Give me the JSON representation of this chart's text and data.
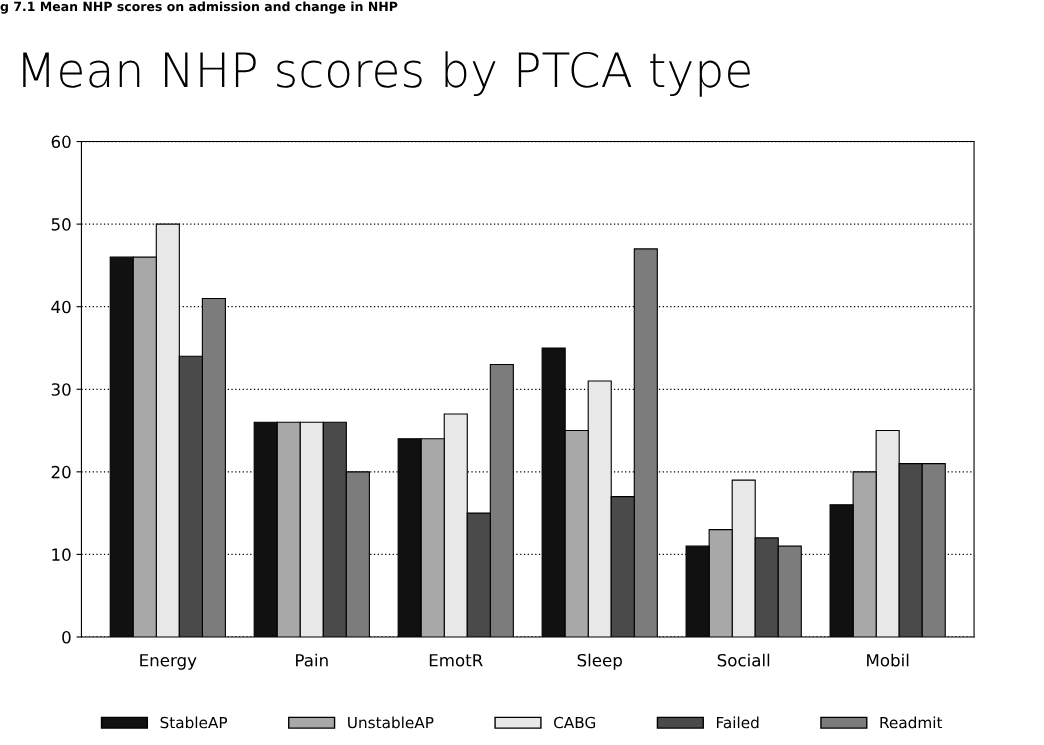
{
  "chart_data": {
    "type": "bar",
    "title": "Mean NHP scores by PTCA type",
    "annotations": [
      "g 7.1 Mean NHP scores on admission and change in NHP"
    ],
    "categories": [
      "Energy",
      "Pain",
      "EmotR",
      "Sleep",
      "Sociall",
      "Mobil"
    ],
    "series": [
      {
        "name": "StableAP",
        "color": "#111111",
        "values": [
          46,
          26,
          24,
          35,
          11,
          16
        ]
      },
      {
        "name": "UnstableAP",
        "color": "#a8a8a8",
        "values": [
          46,
          26,
          24,
          25,
          13,
          20
        ]
      },
      {
        "name": "CABG",
        "color": "#e8e8e8",
        "values": [
          50,
          26,
          27,
          31,
          19,
          25
        ]
      },
      {
        "name": "Failed",
        "color": "#4a4a4a",
        "values": [
          34,
          26,
          15,
          17,
          12,
          21
        ]
      },
      {
        "name": "Readmit",
        "color": "#7c7c7c",
        "values": [
          41,
          20,
          33,
          47,
          11,
          21
        ]
      }
    ],
    "ylim": [
      0,
      60
    ],
    "yticks": [
      0,
      10,
      20,
      30,
      40,
      50,
      60
    ],
    "grid": "y",
    "legend": "bottom"
  }
}
